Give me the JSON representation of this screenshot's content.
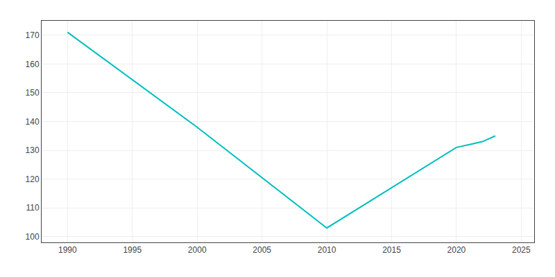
{
  "chart_data": {
    "type": "line",
    "x": [
      1990,
      2000,
      2010,
      2020,
      2021,
      2022,
      2023
    ],
    "values": [
      171,
      138,
      103,
      131,
      132,
      133,
      135
    ],
    "color": "#00BFBF",
    "xlim": [
      1988,
      2026
    ],
    "ylim": [
      98,
      175
    ],
    "xticks": [
      1990,
      1995,
      2000,
      2005,
      2010,
      2015,
      2020,
      2025
    ],
    "yticks": [
      100,
      110,
      120,
      130,
      140,
      150,
      160,
      170
    ],
    "grid": true
  }
}
